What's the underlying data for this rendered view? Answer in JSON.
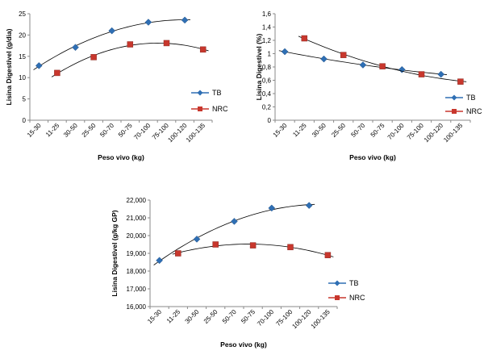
{
  "chart_data": [
    {
      "type": "scatter",
      "title": "",
      "xlabel": "Peso vivo (kg)",
      "ylabel": "Lisina Digestível (g/dia)",
      "ylim": [
        0,
        25
      ],
      "yticks": [
        "0",
        "5",
        "10",
        "15",
        "20",
        "25"
      ],
      "categories": [
        "15-30",
        "11-25",
        "30-50",
        "25-50",
        "50-70",
        "50-75",
        "70-100",
        "75-100",
        "100-120",
        "100-135"
      ],
      "grid": false,
      "legend": "right",
      "series": [
        {
          "name": "TB",
          "color": "#2f6fb4",
          "marker": "diamond",
          "x": [
            0,
            2,
            4,
            6,
            8
          ],
          "y": [
            12.8,
            17.1,
            21.0,
            23.0,
            23.5
          ]
        },
        {
          "name": "NRC",
          "color": "#c8372d",
          "marker": "square",
          "x": [
            1,
            3,
            5,
            7,
            9
          ],
          "y": [
            11.1,
            14.8,
            17.8,
            18.1,
            16.6
          ]
        }
      ]
    },
    {
      "type": "scatter",
      "title": "",
      "xlabel": "Peso vivo (kg)",
      "ylabel": "Lisina Digestível (%)",
      "ylim": [
        0,
        1.6
      ],
      "yticks": [
        "0",
        "0,2",
        "0,4",
        "0,6",
        "0,8",
        "1",
        "1,2",
        "1,4",
        "1,6"
      ],
      "categories": [
        "15-30",
        "11-25",
        "30-50",
        "25-50",
        "50-70",
        "50-75",
        "70-100",
        "75-100",
        "100-120",
        "100-135"
      ],
      "grid": false,
      "legend": "right",
      "series": [
        {
          "name": "TB",
          "color": "#2f6fb4",
          "marker": "diamond",
          "x": [
            0,
            2,
            4,
            6,
            8
          ],
          "y": [
            1.03,
            0.92,
            0.83,
            0.76,
            0.69
          ]
        },
        {
          "name": "NRC",
          "color": "#c8372d",
          "marker": "square",
          "x": [
            1,
            3,
            5,
            7,
            9
          ],
          "y": [
            1.23,
            0.98,
            0.81,
            0.69,
            0.58
          ]
        }
      ]
    },
    {
      "type": "scatter",
      "title": "",
      "xlabel": "Peso vivo (kg)",
      "ylabel": "Lisina Digestível (g/kg GP)",
      "ylim": [
        16000,
        22000
      ],
      "yticks": [
        "16,000",
        "17,000",
        "18,000",
        "19,000",
        "20,000",
        "21,000",
        "22,000"
      ],
      "categories": [
        "15-30",
        "11-25",
        "30-50",
        "25-50",
        "50-70",
        "50-75",
        "70-100",
        "75-100",
        "100-120",
        "100-135"
      ],
      "grid": false,
      "legend": "right",
      "series": [
        {
          "name": "TB",
          "color": "#2f6fb4",
          "marker": "diamond",
          "x": [
            0,
            2,
            4,
            6,
            8
          ],
          "y": [
            18600,
            19800,
            20800,
            21550,
            21700
          ]
        },
        {
          "name": "NRC",
          "color": "#c8372d",
          "marker": "square",
          "x": [
            1,
            3,
            5,
            7,
            9
          ],
          "y": [
            19000,
            19500,
            19450,
            19350,
            18900
          ]
        }
      ]
    }
  ]
}
